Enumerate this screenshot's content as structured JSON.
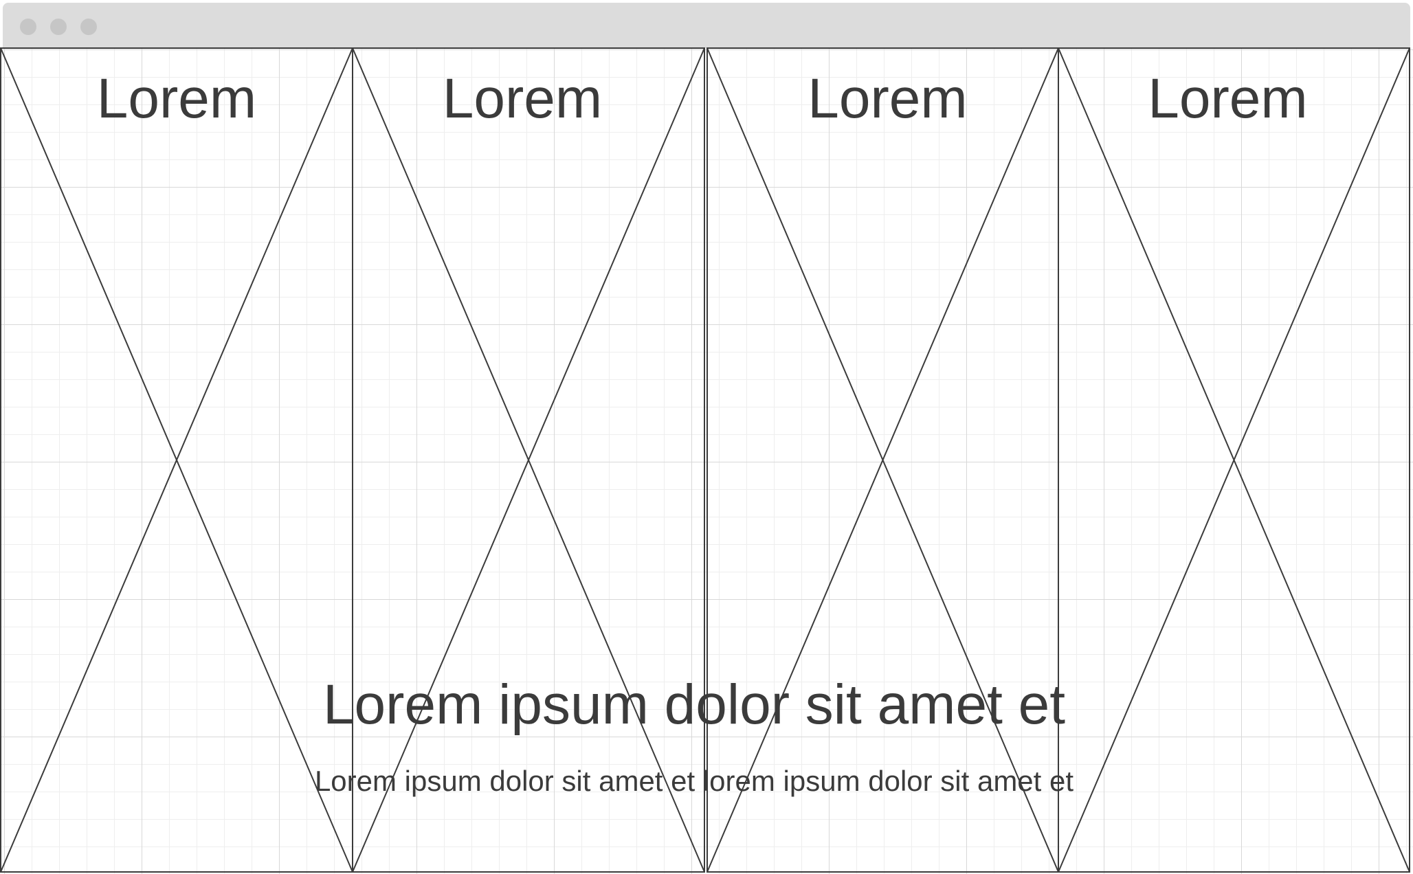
{
  "window": {
    "controls": [
      "close-dot",
      "minimize-dot",
      "zoom-dot"
    ]
  },
  "panels": [
    {
      "title": "Lorem"
    },
    {
      "title": "Lorem"
    },
    {
      "title": "Lorem"
    },
    {
      "title": "Lorem"
    }
  ],
  "hero": {
    "headline": "Lorem ipsum dolor sit amet et",
    "subline": "Lorem ipsum dolor sit amet et lorem ipsum dolor sit amet et"
  },
  "colors": {
    "titlebar": "#dcdcdc",
    "window_dot": "#c6c6c6",
    "stroke": "#3b3b3b",
    "grid_major": "#d8d8d8",
    "grid_minor": "#eeeeee"
  }
}
